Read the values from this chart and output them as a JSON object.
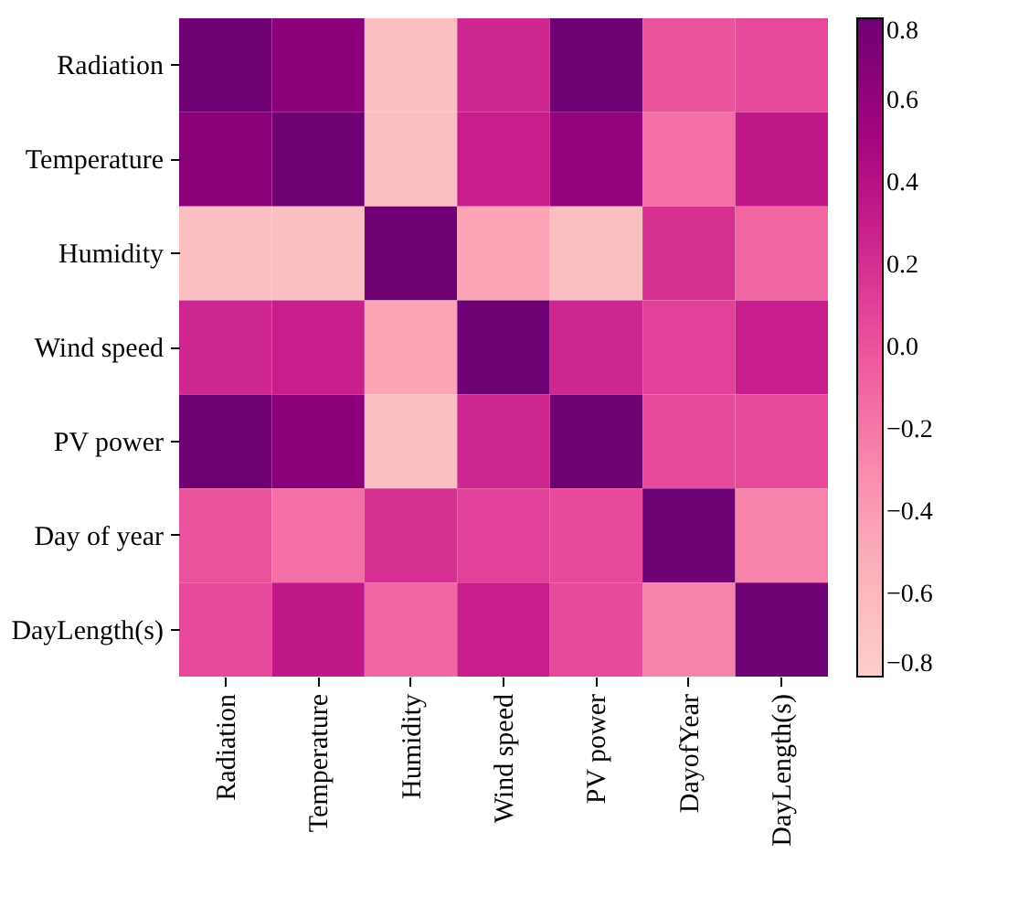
{
  "chart_data": {
    "type": "heatmap",
    "categories": [
      "Radiation",
      "Temperature",
      "Humidity",
      "Wind speed",
      "PV power",
      "DayofYear",
      "DayLength(s)"
    ],
    "y_categories": [
      "Radiation",
      "Temperature",
      "Humidity",
      "Wind speed",
      "PV power",
      "Day of year",
      "DayLength(s)"
    ],
    "cells": [
      [
        0.8,
        0.65,
        -0.65,
        0.25,
        0.8,
        0.0,
        0.05
      ],
      [
        0.65,
        0.8,
        -0.65,
        0.3,
        0.6,
        -0.15,
        0.35
      ],
      [
        -0.65,
        -0.65,
        0.8,
        -0.45,
        -0.65,
        0.2,
        -0.1
      ],
      [
        0.25,
        0.3,
        -0.45,
        0.8,
        0.25,
        0.1,
        0.3
      ],
      [
        0.8,
        0.65,
        -0.65,
        0.25,
        0.8,
        0.05,
        0.05
      ],
      [
        0.0,
        -0.15,
        0.2,
        0.1,
        0.05,
        0.8,
        -0.25
      ],
      [
        0.05,
        0.35,
        -0.1,
        0.3,
        0.05,
        -0.25,
        0.8
      ]
    ],
    "clim": [
      -0.8,
      0.8
    ],
    "cticks": [
      {
        "value": -0.8,
        "label": "−0.8"
      },
      {
        "value": -0.6,
        "label": "−0.6"
      },
      {
        "value": -0.4,
        "label": "−0.4"
      },
      {
        "value": -0.2,
        "label": "−0.2"
      },
      {
        "value": 0.0,
        "label": "0.0"
      },
      {
        "value": 0.2,
        "label": "0.2"
      },
      {
        "value": 0.4,
        "label": "0.4"
      },
      {
        "value": 0.6,
        "label": "0.6"
      },
      {
        "value": 0.8,
        "label": "0.8"
      }
    ]
  }
}
